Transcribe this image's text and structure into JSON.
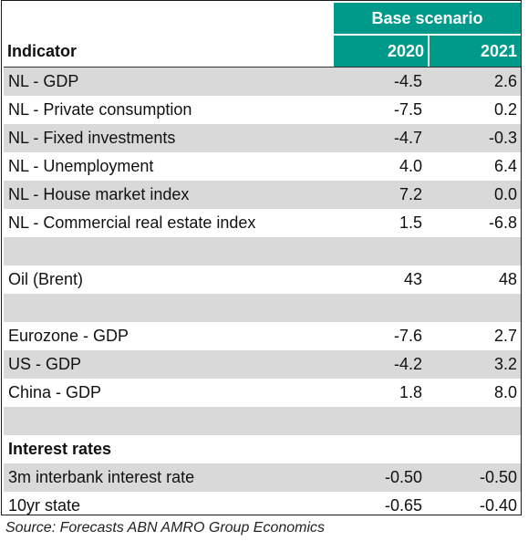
{
  "header": {
    "scenario": "Base scenario",
    "indicator": "Indicator",
    "year1": "2020",
    "year2": "2021"
  },
  "rows": [
    {
      "label": "NL - GDP",
      "v2020": "-4.5",
      "v2021": "2.6"
    },
    {
      "label": "NL - Private consumption",
      "v2020": "-7.5",
      "v2021": "0.2"
    },
    {
      "label": "NL - Fixed investments",
      "v2020": "-4.7",
      "v2021": "-0.3"
    },
    {
      "label": "NL - Unemployment",
      "v2020": "4.0",
      "v2021": "6.4"
    },
    {
      "label": "NL - House market index",
      "v2020": "7.2",
      "v2021": "0.0"
    },
    {
      "label": "NL - Commercial real estate index",
      "v2020": "1.5",
      "v2021": "-6.8"
    },
    {
      "label": "",
      "v2020": "",
      "v2021": ""
    },
    {
      "label": "Oil (Brent)",
      "v2020": "43",
      "v2021": "48"
    },
    {
      "label": "",
      "v2020": "",
      "v2021": ""
    },
    {
      "label": "Eurozone - GDP",
      "v2020": "-7.6",
      "v2021": "2.7"
    },
    {
      "label": "US - GDP",
      "v2020": "-4.2",
      "v2021": "3.2"
    },
    {
      "label": "China - GDP",
      "v2020": "1.8",
      "v2021": "8.0"
    },
    {
      "label": "",
      "v2020": "",
      "v2021": ""
    },
    {
      "label": "Interest rates",
      "v2020": "",
      "v2021": "",
      "bold": true
    },
    {
      "label": "3m interbank interest rate",
      "v2020": "-0.50",
      "v2021": "-0.50"
    },
    {
      "label": "10yr state",
      "v2020": "-0.65",
      "v2021": "-0.40"
    }
  ],
  "source": "Source: Forecasts ABN AMRO Group Economics",
  "colors": {
    "header_bg": "#009a8a",
    "row_shade": "#d9d9d9"
  }
}
